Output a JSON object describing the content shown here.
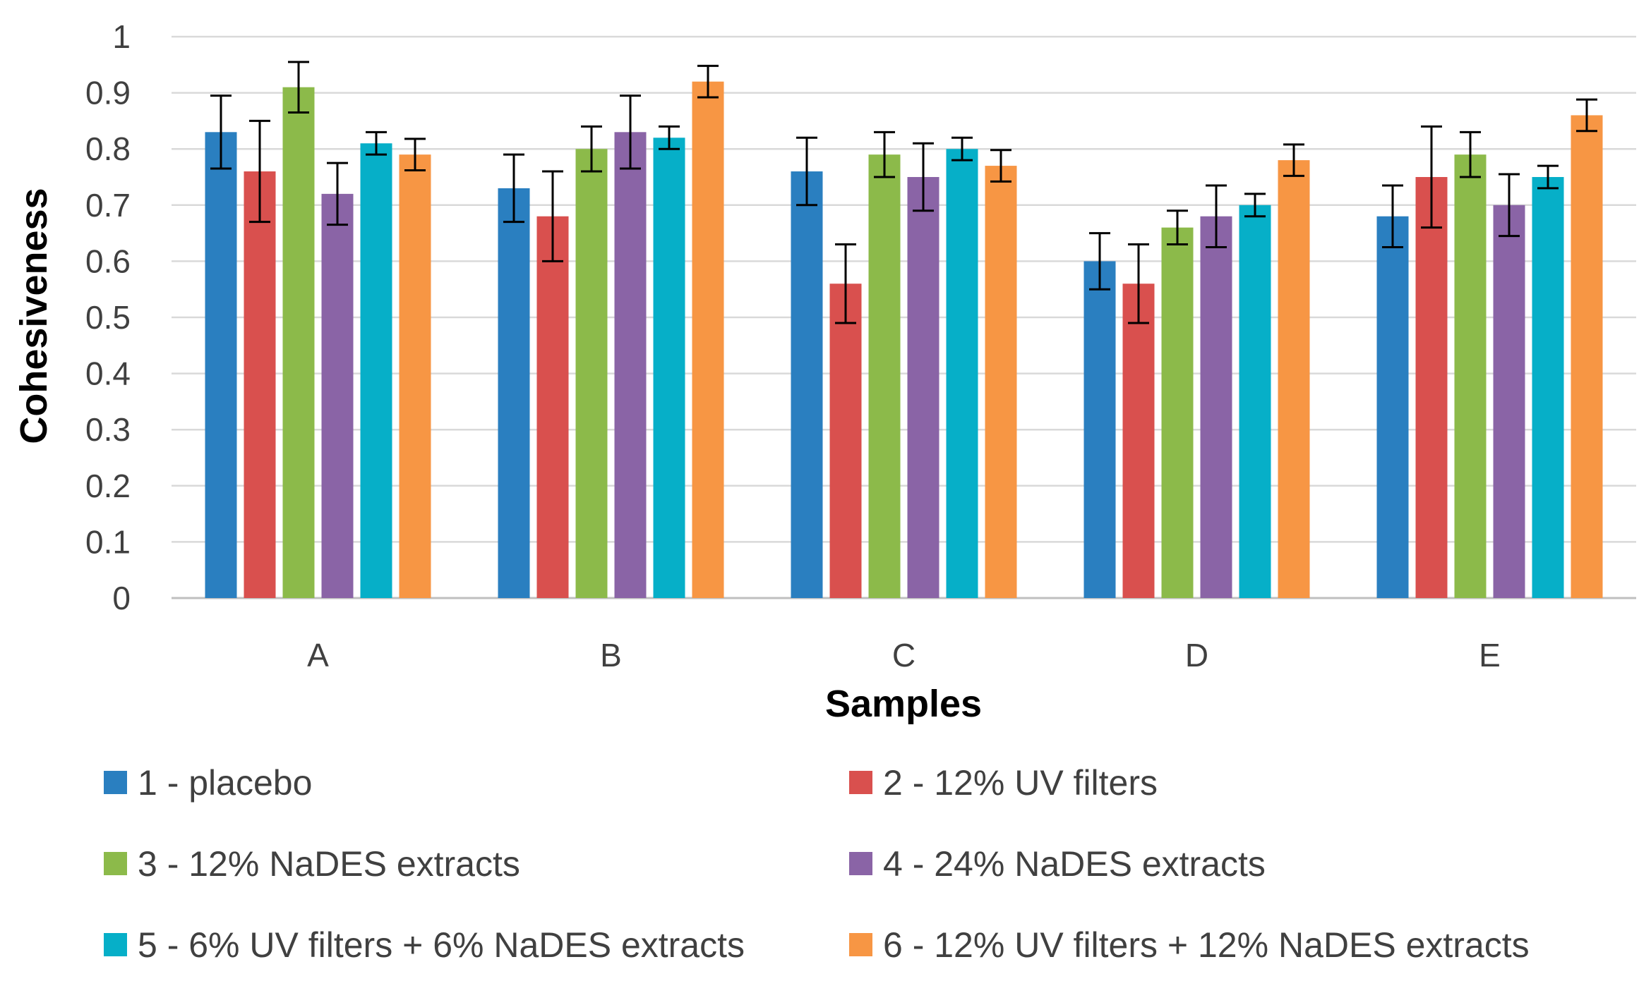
{
  "chart_data": {
    "type": "bar",
    "title": "",
    "xlabel": "Samples",
    "ylabel": "Cohesiveness",
    "ylim": [
      0,
      1
    ],
    "y_ticks": [
      0,
      0.1,
      0.2,
      0.3,
      0.4,
      0.5,
      0.6,
      0.7,
      0.8,
      0.9,
      1
    ],
    "y_tick_labels": [
      "0",
      "0.1",
      "0.2",
      "0.3",
      "0.4",
      "0.5",
      "0.6",
      "0.7",
      "0.8",
      "0.9",
      "1"
    ],
    "grid": "horizontal",
    "legend_position": "bottom",
    "categories": [
      "A",
      "B",
      "C",
      "D",
      "E"
    ],
    "series": [
      {
        "name": "1 - placebo",
        "color": "#2a7fc0",
        "values": [
          0.83,
          0.73,
          0.76,
          0.6,
          0.68
        ],
        "errors": [
          0.065,
          0.06,
          0.06,
          0.05,
          0.055
        ]
      },
      {
        "name": "2 - 12% UV filters",
        "color": "#d9504e",
        "values": [
          0.76,
          0.68,
          0.56,
          0.56,
          0.75
        ],
        "errors": [
          0.09,
          0.08,
          0.07,
          0.07,
          0.09
        ]
      },
      {
        "name": "3 - 12% NaDES extracts",
        "color": "#8cba4a",
        "values": [
          0.91,
          0.8,
          0.79,
          0.66,
          0.79
        ],
        "errors": [
          0.045,
          0.04,
          0.04,
          0.03,
          0.04
        ]
      },
      {
        "name": "4 - 24% NaDES extracts",
        "color": "#8a64a6",
        "values": [
          0.72,
          0.83,
          0.75,
          0.68,
          0.7
        ],
        "errors": [
          0.055,
          0.065,
          0.06,
          0.055,
          0.055
        ]
      },
      {
        "name": "5 - 6% UV filters + 6% NaDES extracts",
        "color": "#06afc8",
        "values": [
          0.81,
          0.82,
          0.8,
          0.7,
          0.75
        ],
        "errors": [
          0.02,
          0.02,
          0.02,
          0.02,
          0.02
        ]
      },
      {
        "name": "6 - 12% UV filters + 12% NaDES extracts",
        "color": "#f79644",
        "values": [
          0.79,
          0.92,
          0.77,
          0.78,
          0.86
        ],
        "errors": [
          0.028,
          0.028,
          0.028,
          0.028,
          0.028
        ]
      }
    ]
  }
}
